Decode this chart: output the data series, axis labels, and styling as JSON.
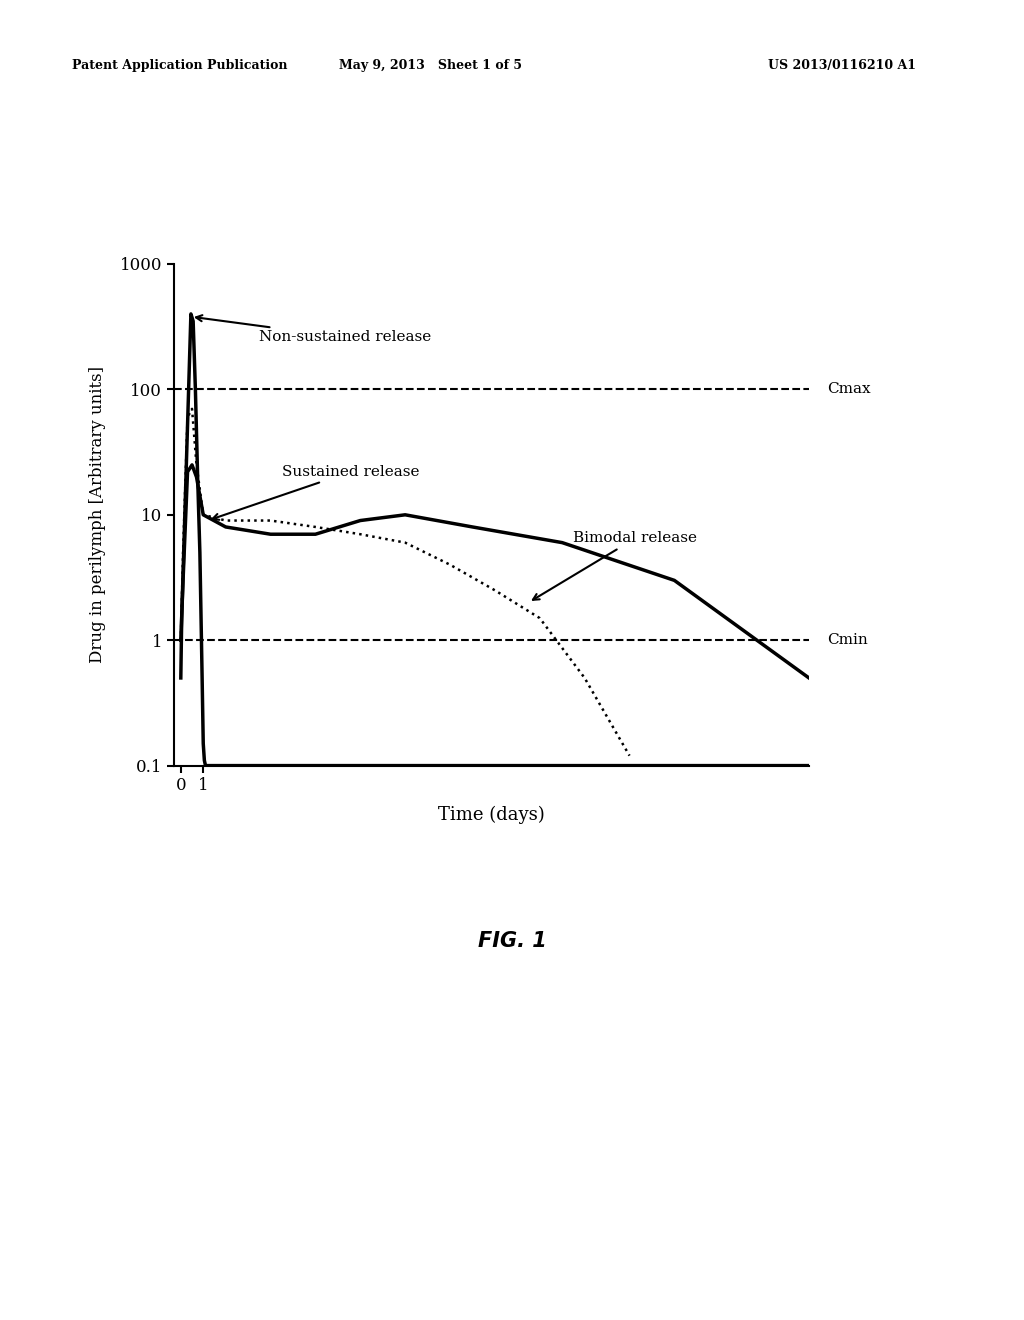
{
  "title": "FIG. 1",
  "xlabel": "Time (days)",
  "ylabel": "Drug in perilymph [Arbitrary units]",
  "ylim": [
    0.1,
    1000
  ],
  "xlim": [
    -0.3,
    28
  ],
  "cmax_value": 100,
  "cmin_value": 1,
  "cmax_label": "Cmax",
  "cmin_label": "Cmin",
  "header_left": "Patent Application Publication",
  "header_mid": "May 9, 2013   Sheet 1 of 5",
  "header_right": "US 2013/0116210 A1",
  "background_color": "#ffffff",
  "annotation_non_sustained": "Non-sustained release",
  "annotation_sustained": "Sustained release",
  "annotation_bimodal": "Bimodal release",
  "nsr_x": [
    0,
    0.04,
    0.45,
    0.55,
    0.65,
    0.75,
    0.85,
    0.95,
    1.0,
    1.05,
    1.1,
    28
  ],
  "nsr_y": [
    0.5,
    1.5,
    400,
    350,
    100,
    20,
    5,
    0.5,
    0.15,
    0.11,
    0.1,
    0.1
  ],
  "sr_x": [
    0,
    0.1,
    0.3,
    0.5,
    0.7,
    1.0,
    2,
    4,
    6,
    8,
    10,
    13,
    17,
    22,
    28
  ],
  "sr_y": [
    1,
    3,
    22,
    25,
    20,
    10,
    8,
    7,
    7,
    9,
    10,
    8,
    6,
    3,
    0.5
  ],
  "bm_x": [
    0,
    0.1,
    0.3,
    0.5,
    0.7,
    1.0,
    2,
    4,
    6,
    8,
    10,
    12,
    14,
    16,
    18,
    20
  ],
  "bm_y": [
    1,
    5,
    60,
    70,
    25,
    10,
    9,
    9,
    8,
    7,
    6,
    4,
    2.5,
    1.5,
    0.5,
    0.12
  ]
}
